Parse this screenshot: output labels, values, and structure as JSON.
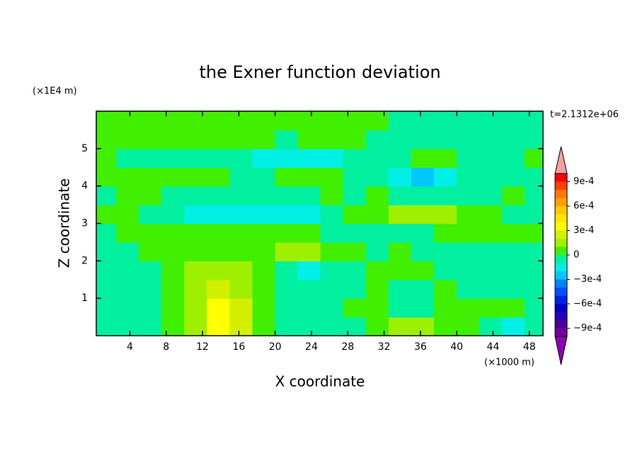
{
  "chart_data": {
    "type": "contour",
    "title": "the Exner function deviation",
    "xlabel": "X coordinate",
    "ylabel": "Z coordinate",
    "xunit": "(×1000 m)",
    "yunit": "(×1E4 m)",
    "annotation": "t=2.1312e+06",
    "xlim": [
      0.3,
      49.5
    ],
    "ylim": [
      0,
      6
    ],
    "xticks": [
      4,
      8,
      12,
      16,
      20,
      24,
      28,
      32,
      36,
      40,
      44,
      48
    ],
    "yticks": [
      1,
      2,
      3,
      4,
      5
    ],
    "x": [
      1.25,
      3.75,
      6.25,
      8.75,
      11.25,
      13.75,
      16.25,
      18.75,
      21.25,
      23.75,
      26.25,
      28.75,
      31.25,
      33.75,
      36.25,
      38.75,
      41.25,
      43.75,
      46.25,
      48.75
    ],
    "z": [
      0.25,
      0.75,
      1.25,
      1.75,
      2.25,
      2.75,
      3.25,
      3.75,
      4.25,
      4.75,
      5.25,
      5.75
    ],
    "values": [
      [
        -5e-05,
        -5e-05,
        -5e-05,
        5e-05,
        0.00015,
        0.00035,
        0.00025,
        5e-05,
        -5e-05,
        -5e-05,
        -5e-05,
        -5e-05,
        5e-05,
        0.00015,
        0.00015,
        5e-05,
        5e-05,
        -5e-05,
        -0.00015,
        -5e-05
      ],
      [
        -5e-05,
        -5e-05,
        -5e-05,
        5e-05,
        0.00015,
        0.00035,
        0.00025,
        5e-05,
        -5e-05,
        -5e-05,
        -5e-05,
        5e-05,
        5e-05,
        -5e-05,
        -5e-05,
        5e-05,
        5e-05,
        5e-05,
        5e-05,
        -5e-05
      ],
      [
        -5e-05,
        -5e-05,
        -5e-05,
        5e-05,
        0.00015,
        0.00025,
        0.00015,
        5e-05,
        -5e-05,
        -5e-05,
        -5e-05,
        -5e-05,
        5e-05,
        -5e-05,
        -5e-05,
        5e-05,
        -5e-05,
        -5e-05,
        -5e-05,
        -5e-05
      ],
      [
        -5e-05,
        -5e-05,
        -5e-05,
        5e-05,
        0.00015,
        0.00015,
        0.00015,
        5e-05,
        -5e-05,
        -0.00015,
        -5e-05,
        -5e-05,
        5e-05,
        5e-05,
        5e-05,
        -5e-05,
        -5e-05,
        -5e-05,
        -5e-05,
        -5e-05
      ],
      [
        -5e-05,
        -5e-05,
        5e-05,
        5e-05,
        5e-05,
        5e-05,
        5e-05,
        5e-05,
        0.00015,
        0.00015,
        5e-05,
        5e-05,
        -5e-05,
        5e-05,
        -5e-05,
        -5e-05,
        -5e-05,
        -5e-05,
        -5e-05,
        -5e-05
      ],
      [
        -5e-05,
        5e-05,
        5e-05,
        5e-05,
        5e-05,
        5e-05,
        5e-05,
        5e-05,
        5e-05,
        5e-05,
        -5e-05,
        -5e-05,
        -5e-05,
        -5e-05,
        -5e-05,
        5e-05,
        5e-05,
        5e-05,
        5e-05,
        5e-05
      ],
      [
        5e-05,
        5e-05,
        -5e-05,
        -5e-05,
        -0.00015,
        -0.00015,
        -0.00015,
        -0.00015,
        -0.00015,
        -0.00015,
        -5e-05,
        5e-05,
        5e-05,
        0.00015,
        0.00015,
        0.00015,
        5e-05,
        5e-05,
        -5e-05,
        -5e-05
      ],
      [
        -5e-05,
        5e-05,
        5e-05,
        -5e-05,
        -5e-05,
        -5e-05,
        -5e-05,
        -5e-05,
        -5e-05,
        -5e-05,
        5e-05,
        -5e-05,
        5e-05,
        -5e-05,
        -5e-05,
        -5e-05,
        -5e-05,
        -5e-05,
        5e-05,
        -5e-05
      ],
      [
        5e-05,
        5e-05,
        5e-05,
        5e-05,
        5e-05,
        5e-05,
        -5e-05,
        -5e-05,
        5e-05,
        5e-05,
        5e-05,
        -5e-05,
        -5e-05,
        -0.00015,
        -0.00025,
        -0.00015,
        -5e-05,
        -5e-05,
        -5e-05,
        -5e-05
      ],
      [
        5e-05,
        -5e-05,
        -5e-05,
        -5e-05,
        -5e-05,
        -5e-05,
        -5e-05,
        -0.00015,
        -0.00015,
        -0.00015,
        -0.00015,
        -5e-05,
        -5e-05,
        -5e-05,
        5e-05,
        5e-05,
        -5e-05,
        -5e-05,
        -5e-05,
        5e-05
      ],
      [
        5e-05,
        5e-05,
        5e-05,
        5e-05,
        5e-05,
        5e-05,
        5e-05,
        5e-05,
        -5e-05,
        5e-05,
        5e-05,
        5e-05,
        -5e-05,
        -5e-05,
        -5e-05,
        -5e-05,
        -5e-05,
        -5e-05,
        -5e-05,
        -5e-05
      ],
      [
        5e-05,
        5e-05,
        5e-05,
        5e-05,
        5e-05,
        5e-05,
        5e-05,
        5e-05,
        5e-05,
        5e-05,
        5e-05,
        5e-05,
        5e-05,
        -5e-05,
        -5e-05,
        -5e-05,
        -5e-05,
        -5e-05,
        -5e-05,
        -5e-05
      ]
    ],
    "levels": [
      -0.001,
      -0.0009,
      -0.0008,
      -0.0007,
      -0.0006,
      -0.0005,
      -0.0004,
      -0.0003,
      -0.0002,
      -0.0001,
      0,
      0.0001,
      0.0002,
      0.0003,
      0.0004,
      0.0005,
      0.0006,
      0.0007,
      0.0008,
      0.0009,
      0.001
    ],
    "colors": [
      "#7800a0",
      "#4b0096",
      "#2800b4",
      "#0000c8",
      "#0020e6",
      "#0050ff",
      "#0082ff",
      "#00c8ff",
      "#00f0e6",
      "#00f0a0",
      "#40f000",
      "#9ef000",
      "#d2f000",
      "#ffff00",
      "#ffe600",
      "#ffc800",
      "#ffa000",
      "#ff7800",
      "#ff4000",
      "#ff0000"
    ],
    "under_color": "#8c00b4",
    "over_color": "#f5a0a0",
    "colorbar_ticks": [
      {
        "value": 0.0009,
        "label": "9e-4"
      },
      {
        "value": 0.0006,
        "label": "6e-4"
      },
      {
        "value": 0.0003,
        "label": "3e-4"
      },
      0,
      {
        "value": -0.0003,
        "label": "−3e-4"
      },
      {
        "value": -0.0006,
        "label": "−6e-4"
      },
      {
        "value": -0.0009,
        "label": "−9e-4"
      }
    ]
  }
}
